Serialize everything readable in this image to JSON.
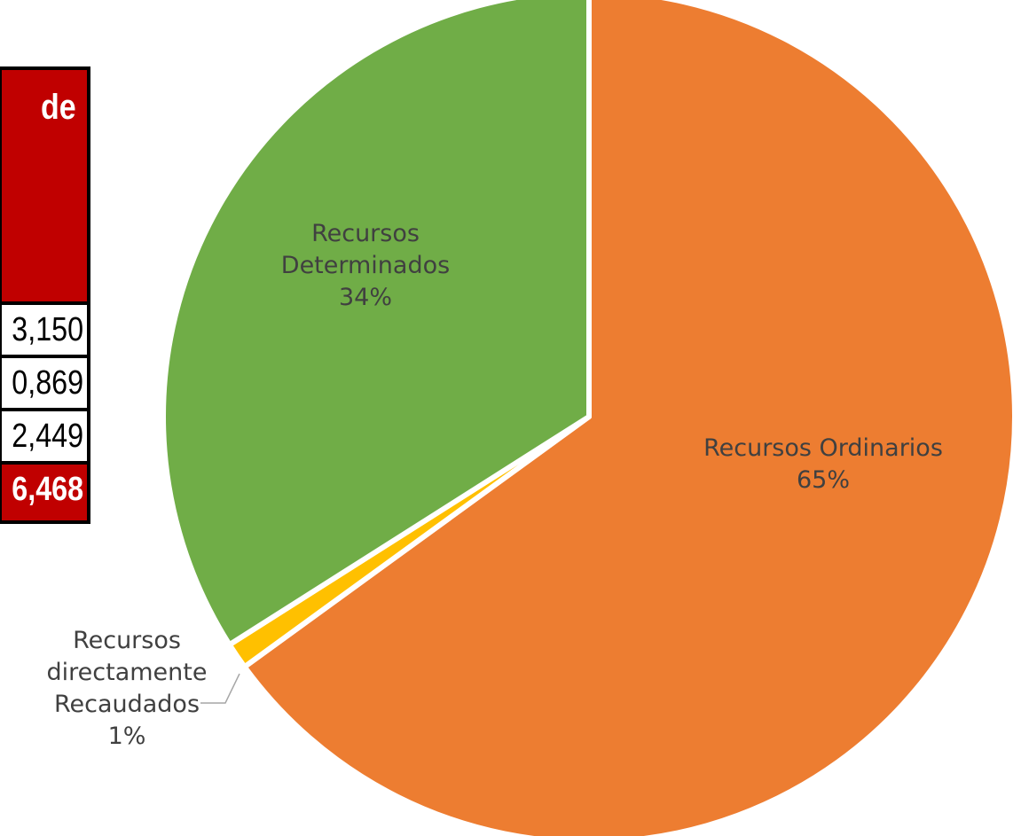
{
  "table": {
    "header": "de",
    "rows": [
      "3,150",
      "0,869",
      "2,449"
    ],
    "total": "6,468"
  },
  "chart_data": {
    "type": "pie",
    "slices": [
      {
        "name": "Recursos Ordinarios",
        "value": 65,
        "label_lines": [
          "Recursos Ordinarios",
          "65%"
        ],
        "color": "#ed7d31"
      },
      {
        "name": "Recursos directamente Recaudados",
        "value": 1,
        "label_lines": [
          "Recursos",
          "directamente",
          "Recaudados",
          "1%"
        ],
        "color": "#ffc000"
      },
      {
        "name": "Recursos Determinados",
        "value": 34,
        "label_lines": [
          "Recursos",
          "Determinados",
          "34%"
        ],
        "color": "#70ad47"
      }
    ]
  }
}
